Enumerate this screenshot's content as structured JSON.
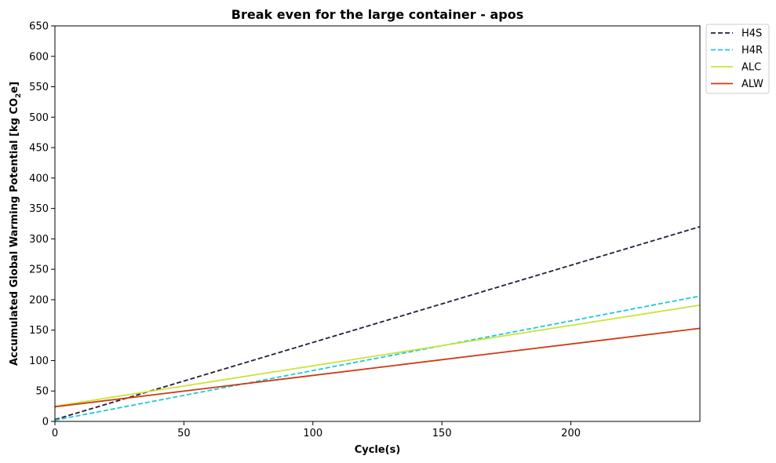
{
  "chart_data": {
    "type": "line",
    "title": "Break even for the large container - apos",
    "xlabel": "Cycle(s)",
    "ylabel_parts": {
      "main": "Accumulated Global Warming Potential [kg CO",
      "sub": "2",
      "suffix": "e]"
    },
    "xlim": [
      0,
      250
    ],
    "ylim": [
      0,
      650
    ],
    "xticks": [
      0,
      50,
      100,
      150,
      200
    ],
    "yticks": [
      0,
      50,
      100,
      150,
      200,
      250,
      300,
      350,
      400,
      450,
      500,
      550,
      600,
      650
    ],
    "grid": false,
    "legend_position": "outside-top-right",
    "series": [
      {
        "name": "H4S",
        "color": "#2b1a3d",
        "dash": "dashed",
        "x": [
          0,
          250
        ],
        "y": [
          3,
          320
        ]
      },
      {
        "name": "H4R",
        "color": "#1ec8d8",
        "dash": "dashed",
        "x": [
          0,
          250
        ],
        "y": [
          2,
          206
        ]
      },
      {
        "name": "ALC",
        "color": "#c8e43a",
        "dash": "solid",
        "x": [
          0,
          250
        ],
        "y": [
          25,
          191
        ]
      },
      {
        "name": "ALW",
        "color": "#cc3a12",
        "dash": "solid",
        "x": [
          0,
          250
        ],
        "y": [
          24,
          153
        ]
      }
    ]
  }
}
